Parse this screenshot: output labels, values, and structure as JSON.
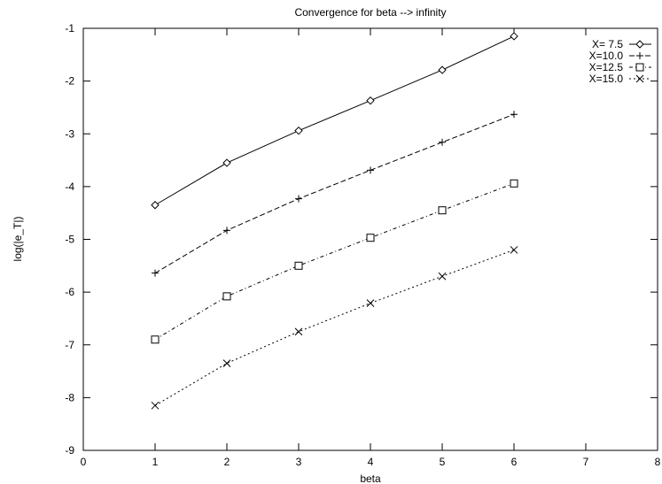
{
  "chart_data": {
    "type": "line",
    "title": "Convergence for beta --> infinity",
    "xlabel": "beta",
    "ylabel": "log(|e_T|)",
    "xlim": [
      0,
      8
    ],
    "ylim": [
      -9,
      -1
    ],
    "xticks": [
      0,
      1,
      2,
      3,
      4,
      5,
      6,
      7,
      8
    ],
    "yticks": [
      -9,
      -8,
      -7,
      -6,
      -5,
      -4,
      -3,
      -2,
      -1
    ],
    "grid": false,
    "legend_position": "top-right",
    "series": [
      {
        "name": "X= 7.5",
        "marker": "diamond",
        "line_style": "solid",
        "x": [
          1,
          2,
          3,
          4,
          5,
          6
        ],
        "y": [
          -4.35,
          -3.55,
          -2.94,
          -2.37,
          -1.79,
          -1.15
        ]
      },
      {
        "name": "X=10.0",
        "marker": "plus",
        "line_style": "dashed",
        "x": [
          1,
          2,
          3,
          4,
          5,
          6
        ],
        "y": [
          -5.64,
          -4.83,
          -4.23,
          -3.69,
          -3.16,
          -2.63
        ]
      },
      {
        "name": "X=12.5",
        "marker": "square",
        "line_style": "dash-dot",
        "x": [
          1,
          2,
          3,
          4,
          5,
          6
        ],
        "y": [
          -6.9,
          -6.08,
          -5.5,
          -4.97,
          -4.45,
          -3.94
        ]
      },
      {
        "name": "X=15.0",
        "marker": "cross",
        "line_style": "dotted",
        "x": [
          1,
          2,
          3,
          4,
          5,
          6
        ],
        "y": [
          -8.15,
          -7.35,
          -6.75,
          -6.21,
          -5.7,
          -5.2
        ]
      }
    ]
  }
}
